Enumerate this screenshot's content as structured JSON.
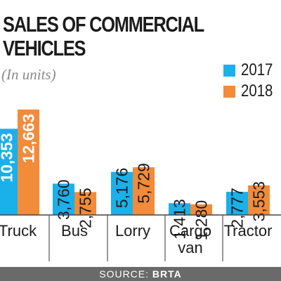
{
  "chart_data": {
    "type": "bar",
    "title": "SALES OF COMMERCIAL VEHICLES",
    "title_lines": [
      "SALES OF COMMERCIAL",
      "VEHICLES"
    ],
    "subtitle": "(In units)",
    "categories": [
      "Truck",
      "Bus",
      "Lorry",
      "Cargo van",
      "Tractor"
    ],
    "category_lines": [
      [
        "Truck"
      ],
      [
        "Bus"
      ],
      [
        "Lorry"
      ],
      [
        "Cargo",
        "van"
      ],
      [
        "Tractor"
      ]
    ],
    "series": [
      {
        "name": "2017",
        "color": "#1ab0ea",
        "values": [
          10353,
          3760,
          5176,
          1413,
          2777
        ],
        "labels": [
          "10,353",
          "3,760",
          "5,176",
          "1,413",
          "2,777"
        ]
      },
      {
        "name": "2018",
        "color": "#f28b3a",
        "values": [
          12663,
          2755,
          5729,
          1280,
          3553
        ],
        "labels": [
          "12,663",
          "2,755",
          "5,729",
          "1,280",
          "3,553"
        ]
      }
    ],
    "ylim": [
      0,
      13500
    ],
    "legend_position": "top-right",
    "grid": false,
    "source_label": "SOURCE:",
    "source_value": "BRTA"
  }
}
